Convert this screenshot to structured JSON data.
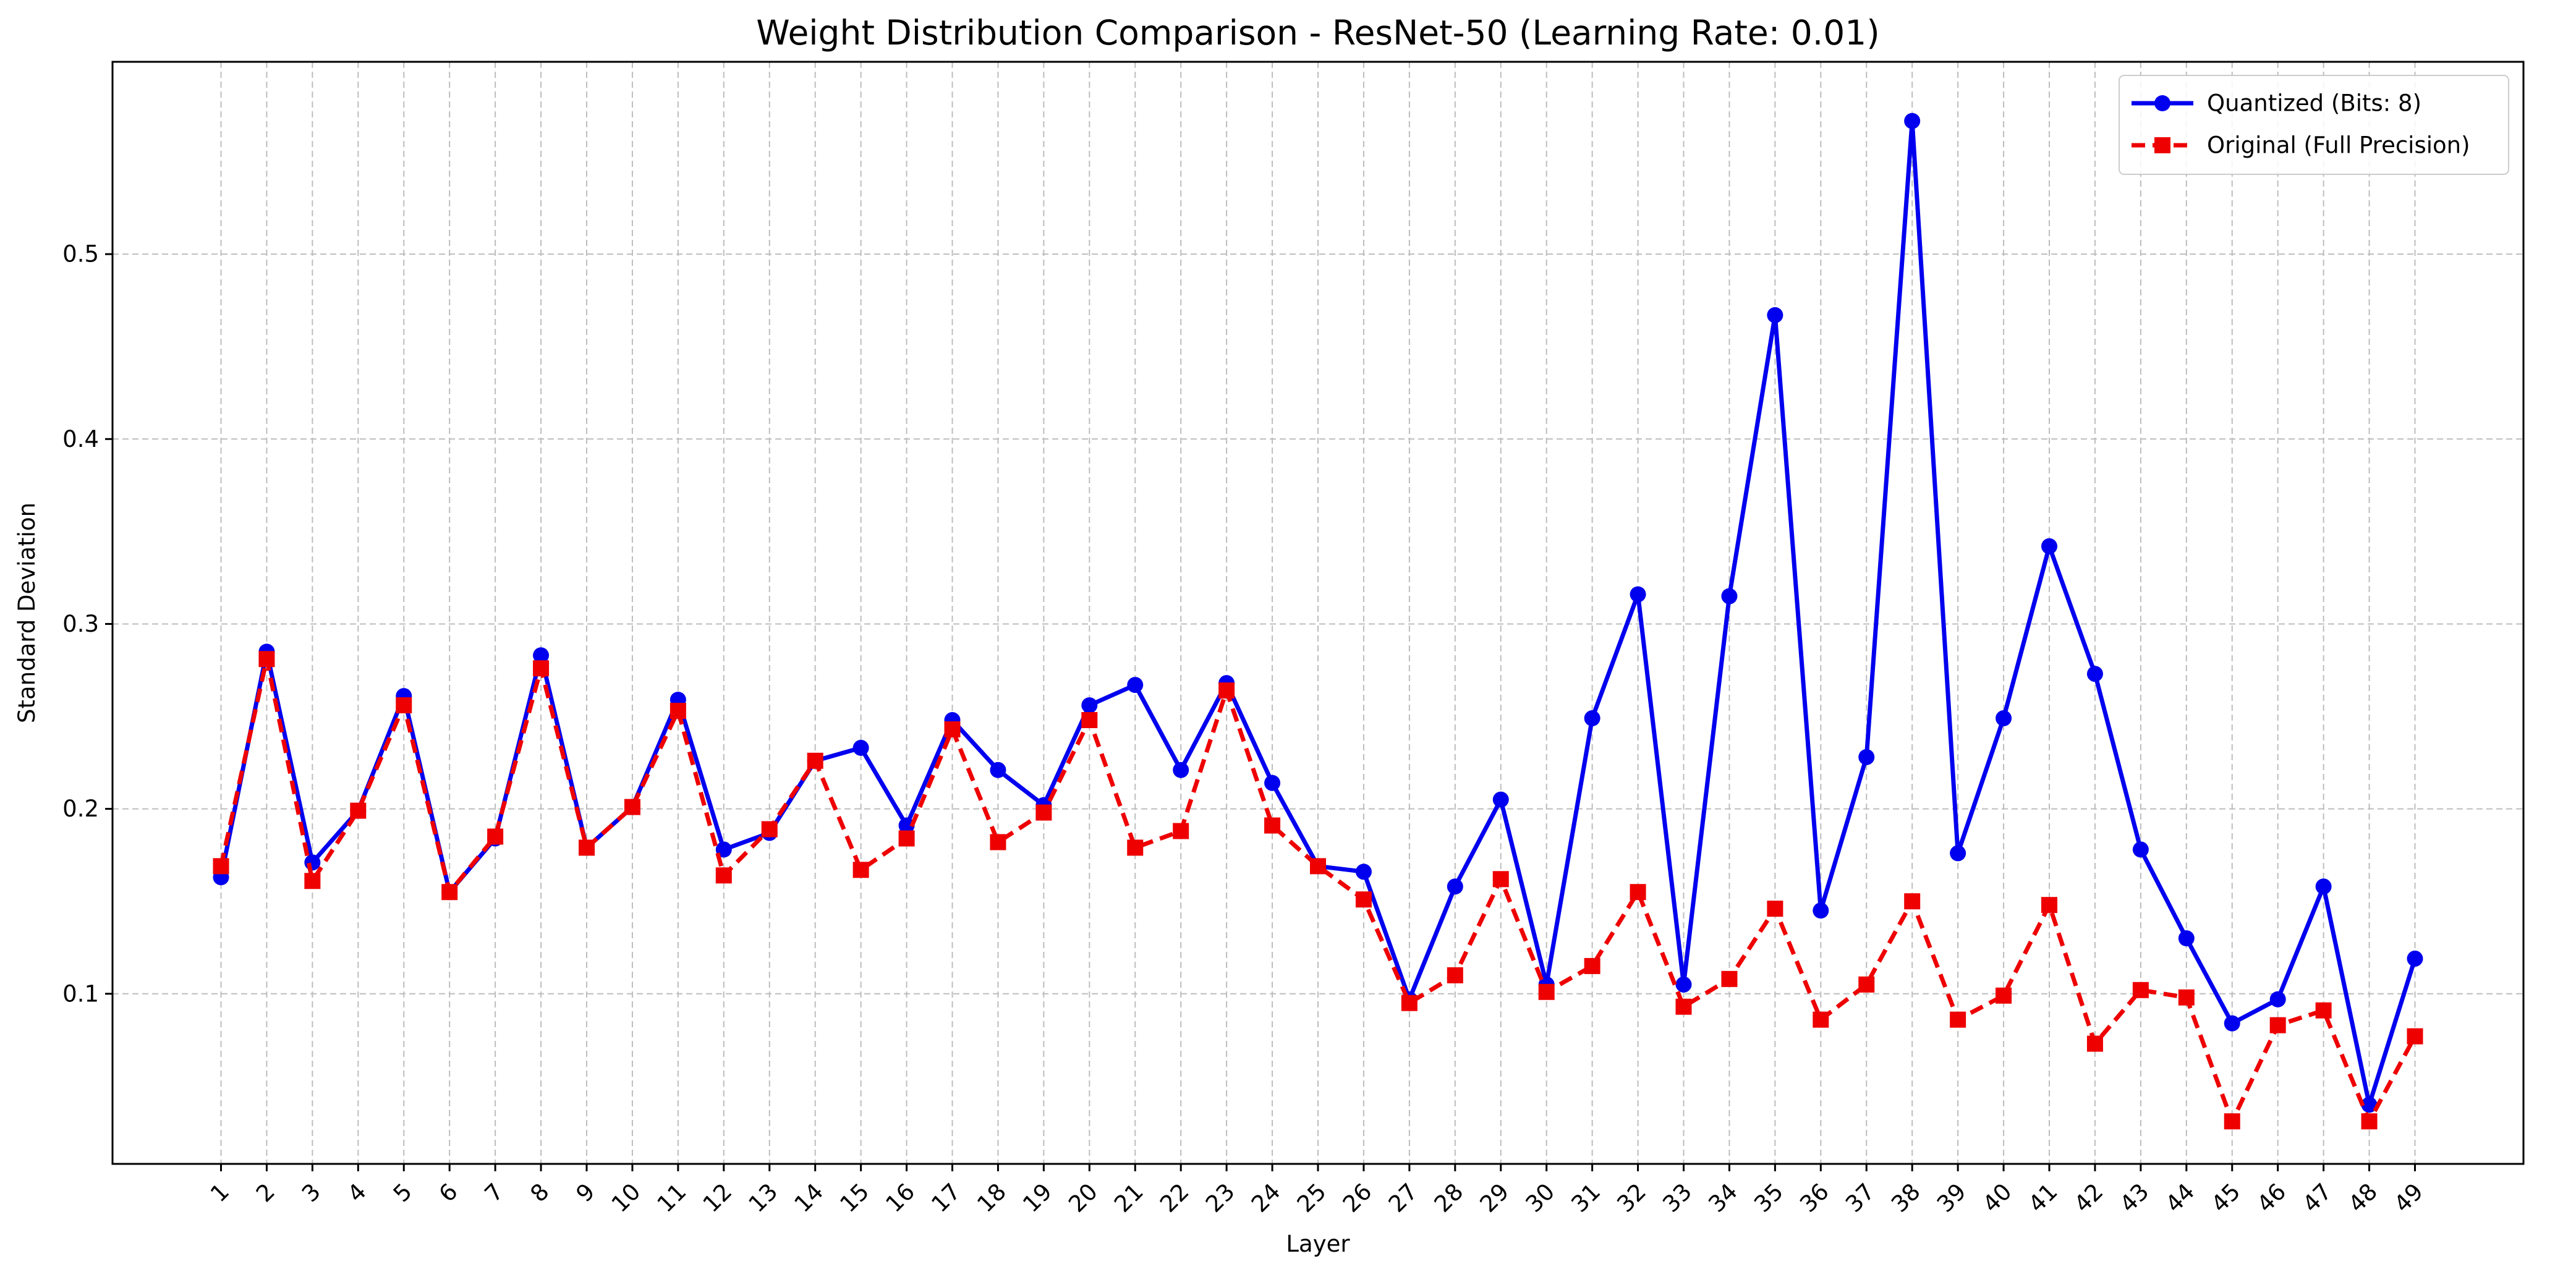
{
  "chart_data": {
    "type": "line",
    "title": "Weight Distribution Comparison - ResNet-50 (Learning Rate: 0.01)",
    "xlabel": "Layer",
    "ylabel": "Standard Deviation",
    "categories": [
      "1",
      "2",
      "3",
      "4",
      "5",
      "6",
      "7",
      "8",
      "9",
      "10",
      "11",
      "12",
      "13",
      "14",
      "15",
      "16",
      "17",
      "18",
      "19",
      "20",
      "21",
      "22",
      "23",
      "24",
      "25",
      "26",
      "27",
      "28",
      "29",
      "30",
      "31",
      "32",
      "33",
      "34",
      "35",
      "36",
      "37",
      "38",
      "39",
      "40",
      "41",
      "42",
      "43",
      "44",
      "45",
      "46",
      "47",
      "48",
      "49"
    ],
    "ylim": [
      0.008,
      0.604
    ],
    "yticks": [
      "0.1",
      "0.2",
      "0.3",
      "0.4",
      "0.5"
    ],
    "ytick_values": [
      0.1,
      0.2,
      0.3,
      0.4,
      0.5
    ],
    "grid": true,
    "legend_position": "top-right",
    "series": [
      {
        "name": "Quantized (Bits: 8)",
        "color": "#0000ee",
        "marker": "circle",
        "linestyle": "solid",
        "values": [
          0.163,
          0.285,
          0.171,
          0.199,
          0.261,
          0.155,
          0.184,
          0.283,
          0.179,
          0.201,
          0.259,
          0.178,
          0.187,
          0.226,
          0.233,
          0.191,
          0.248,
          0.221,
          0.202,
          0.256,
          0.267,
          0.221,
          0.268,
          0.214,
          0.169,
          0.166,
          0.097,
          0.158,
          0.205,
          0.105,
          0.249,
          0.316,
          0.105,
          0.315,
          0.467,
          0.145,
          0.228,
          0.572,
          0.176,
          0.249,
          0.342,
          0.273,
          0.178,
          0.13,
          0.084,
          0.097,
          0.158,
          0.04,
          0.119
        ]
      },
      {
        "name": "Original (Full Precision)",
        "color": "#ee0000",
        "marker": "square",
        "linestyle": "dashed",
        "values": [
          0.169,
          0.281,
          0.161,
          0.199,
          0.256,
          0.155,
          0.185,
          0.276,
          0.179,
          0.201,
          0.253,
          0.164,
          0.189,
          0.226,
          0.167,
          0.184,
          0.243,
          0.182,
          0.198,
          0.248,
          0.179,
          0.188,
          0.264,
          0.191,
          0.169,
          0.151,
          0.095,
          0.11,
          0.162,
          0.101,
          0.115,
          0.155,
          0.093,
          0.108,
          0.146,
          0.086,
          0.105,
          0.15,
          0.086,
          0.099,
          0.148,
          0.073,
          0.102,
          0.098,
          0.031,
          0.083,
          0.091,
          0.031,
          0.077
        ]
      }
    ]
  }
}
